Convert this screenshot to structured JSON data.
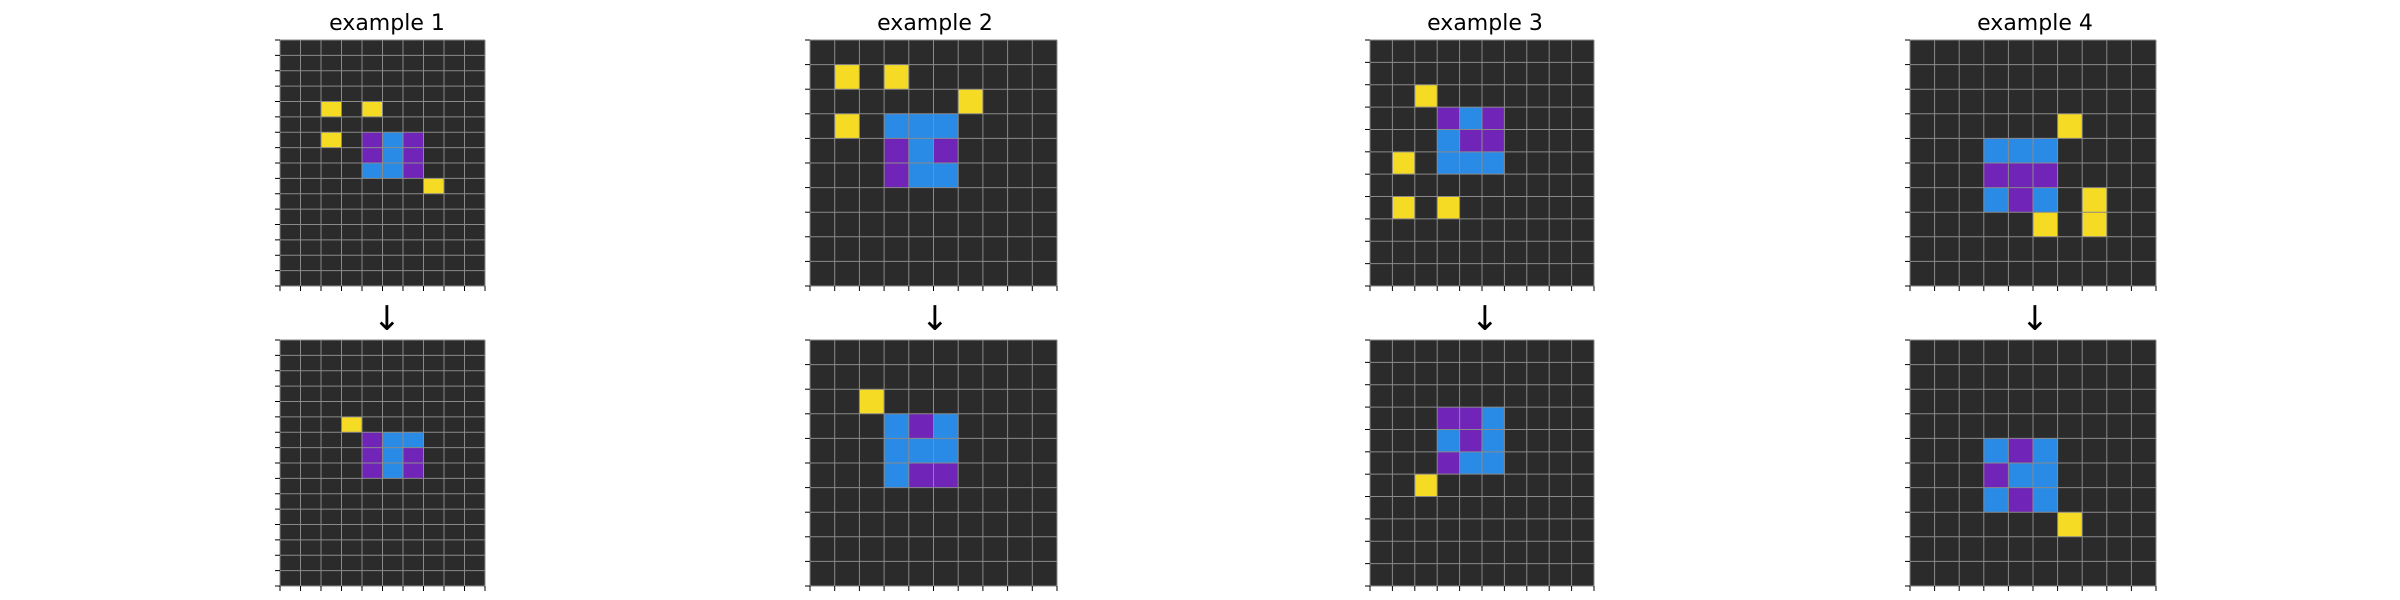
{
  "palette": {
    "0": "#2b2b2b",
    "1": "#2a8be6",
    "2": "#7125b8",
    "3": "#f6db24"
  },
  "grid_line_color": "#8a8a8a",
  "tick_color": "#000000",
  "arrow": "↓",
  "examples": [
    {
      "title": "example 1",
      "input": {
        "rows": 16,
        "cols": 10,
        "cells": [
          [
            4,
            2,
            3
          ],
          [
            4,
            4,
            3
          ],
          [
            6,
            2,
            3
          ],
          [
            6,
            4,
            2
          ],
          [
            6,
            5,
            1
          ],
          [
            6,
            6,
            2
          ],
          [
            7,
            4,
            2
          ],
          [
            7,
            5,
            1
          ],
          [
            7,
            6,
            2
          ],
          [
            8,
            4,
            1
          ],
          [
            8,
            5,
            1
          ],
          [
            8,
            6,
            2
          ],
          [
            9,
            7,
            3
          ]
        ]
      },
      "output": {
        "rows": 16,
        "cols": 10,
        "cells": [
          [
            5,
            3,
            3
          ],
          [
            6,
            4,
            2
          ],
          [
            6,
            5,
            1
          ],
          [
            6,
            6,
            1
          ],
          [
            7,
            4,
            2
          ],
          [
            7,
            5,
            1
          ],
          [
            7,
            6,
            2
          ],
          [
            8,
            4,
            2
          ],
          [
            8,
            5,
            1
          ],
          [
            8,
            6,
            2
          ]
        ]
      }
    },
    {
      "title": "example 2",
      "input": {
        "rows": 10,
        "cols": 10,
        "cells": [
          [
            1,
            1,
            3
          ],
          [
            1,
            3,
            3
          ],
          [
            2,
            6,
            3
          ],
          [
            3,
            1,
            3
          ],
          [
            3,
            3,
            1
          ],
          [
            3,
            4,
            1
          ],
          [
            3,
            5,
            1
          ],
          [
            4,
            3,
            2
          ],
          [
            4,
            4,
            1
          ],
          [
            4,
            5,
            2
          ],
          [
            5,
            3,
            2
          ],
          [
            5,
            4,
            1
          ],
          [
            5,
            5,
            1
          ]
        ]
      },
      "output": {
        "rows": 10,
        "cols": 10,
        "cells": [
          [
            2,
            2,
            3
          ],
          [
            3,
            3,
            1
          ],
          [
            3,
            4,
            2
          ],
          [
            3,
            5,
            1
          ],
          [
            4,
            3,
            1
          ],
          [
            4,
            4,
            1
          ],
          [
            4,
            5,
            1
          ],
          [
            5,
            3,
            1
          ],
          [
            5,
            4,
            2
          ],
          [
            5,
            5,
            2
          ]
        ]
      }
    },
    {
      "title": "example 3",
      "input": {
        "rows": 11,
        "cols": 10,
        "cells": [
          [
            2,
            2,
            3
          ],
          [
            3,
            3,
            2
          ],
          [
            3,
            4,
            1
          ],
          [
            3,
            5,
            2
          ],
          [
            4,
            3,
            1
          ],
          [
            4,
            4,
            2
          ],
          [
            4,
            5,
            2
          ],
          [
            5,
            1,
            3
          ],
          [
            5,
            3,
            1
          ],
          [
            5,
            4,
            1
          ],
          [
            5,
            5,
            1
          ],
          [
            7,
            1,
            3
          ],
          [
            7,
            3,
            3
          ]
        ]
      },
      "output": {
        "rows": 11,
        "cols": 10,
        "cells": [
          [
            3,
            3,
            2
          ],
          [
            3,
            4,
            2
          ],
          [
            3,
            5,
            1
          ],
          [
            4,
            3,
            1
          ],
          [
            4,
            4,
            2
          ],
          [
            4,
            5,
            1
          ],
          [
            5,
            3,
            2
          ],
          [
            5,
            4,
            1
          ],
          [
            5,
            5,
            1
          ],
          [
            6,
            2,
            3
          ]
        ]
      }
    },
    {
      "title": "example 4",
      "input": {
        "rows": 10,
        "cols": 10,
        "cells": [
          [
            3,
            6,
            3
          ],
          [
            4,
            3,
            1
          ],
          [
            4,
            4,
            1
          ],
          [
            4,
            5,
            1
          ],
          [
            5,
            3,
            2
          ],
          [
            5,
            4,
            2
          ],
          [
            5,
            5,
            2
          ],
          [
            6,
            3,
            1
          ],
          [
            6,
            4,
            2
          ],
          [
            6,
            5,
            1
          ],
          [
            6,
            7,
            3
          ],
          [
            7,
            5,
            3
          ],
          [
            7,
            7,
            3
          ]
        ]
      },
      "output": {
        "rows": 10,
        "cols": 10,
        "cells": [
          [
            4,
            3,
            1
          ],
          [
            4,
            4,
            2
          ],
          [
            4,
            5,
            1
          ],
          [
            5,
            3,
            2
          ],
          [
            5,
            4,
            1
          ],
          [
            5,
            5,
            1
          ],
          [
            6,
            3,
            1
          ],
          [
            6,
            4,
            2
          ],
          [
            6,
            5,
            1
          ],
          [
            7,
            6,
            3
          ]
        ]
      }
    }
  ]
}
